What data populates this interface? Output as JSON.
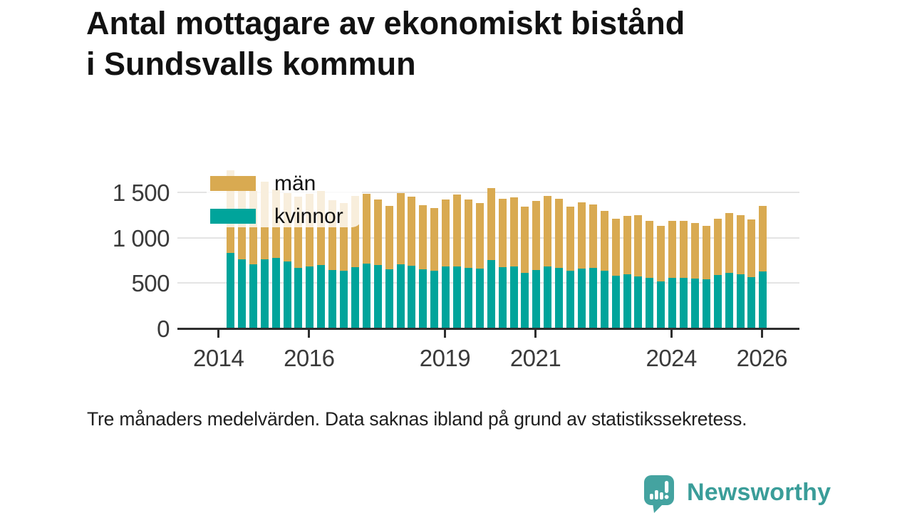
{
  "title": {
    "line1": "Antal mottagare av ekonomiskt bistånd",
    "line2": "i Sundsvalls kommun"
  },
  "footnote": "Tre månaders medelvärden. Data saknas ibland på grund av statistikssekretess.",
  "legend": {
    "items": [
      {
        "label": "män",
        "color": "#d9aa51"
      },
      {
        "label": "kvinnor",
        "color": "#00a49b"
      }
    ]
  },
  "brand": {
    "name": "Newsworthy",
    "color": "#3a9d99",
    "icon": "speech-bubble-bar-chart-icon",
    "icon_color": "#44a3a0"
  },
  "chart_data": {
    "type": "bar",
    "stacked": true,
    "title": "Antal mottagare av ekonomiskt bistånd i Sundsvalls kommun",
    "subtitle_note": "Tre månaders medelvärden. Data saknas ibland på grund av statistikssekretess.",
    "unit": "antal mottagare",
    "grid": true,
    "legend_position": "top-left-overlay",
    "ylim": [
      0,
      1800
    ],
    "x": [
      "2014 Q1",
      "2014 Q2",
      "2014 Q3",
      "2014 Q4",
      "2015 Q1",
      "2015 Q2",
      "2015 Q3",
      "2015 Q4",
      "2016 Q1",
      "2016 Q2",
      "2016 Q3",
      "2016 Q4",
      "2017 Q1",
      "2017 Q2",
      "2017 Q3",
      "2017 Q4",
      "2018 Q1",
      "2018 Q2",
      "2018 Q3",
      "2018 Q4",
      "2019 Q1",
      "2019 Q2",
      "2019 Q3",
      "2019 Q4",
      "2020 Q1",
      "2020 Q2",
      "2020 Q3",
      "2020 Q4",
      "2021 Q1",
      "2021 Q2",
      "2021 Q3",
      "2021 Q4",
      "2022 Q1",
      "2022 Q2",
      "2022 Q3",
      "2022 Q4",
      "2023 Q1",
      "2023 Q2",
      "2023 Q3",
      "2023 Q4",
      "2024 Q1",
      "2024 Q2",
      "2024 Q3",
      "2024 Q4",
      "2025 Q1",
      "2025 Q2",
      "2025 Q3",
      "2025 Q4"
    ],
    "series": [
      {
        "name": "kvinnor",
        "color": "#00a49b",
        "values": [
          825,
          755,
          700,
          755,
          770,
          730,
          665,
          675,
          690,
          640,
          630,
          670,
          710,
          690,
          645,
          700,
          685,
          645,
          630,
          675,
          675,
          665,
          655,
          745,
          670,
          675,
          610,
          640,
          675,
          665,
          630,
          655,
          660,
          630,
          575,
          590,
          570,
          555,
          515,
          550,
          550,
          545,
          535,
          585,
          610,
          590,
          560,
          620
        ]
      },
      {
        "name": "män",
        "color": "#d9aa51",
        "values": [
          915,
          780,
          815,
          860,
          760,
          760,
          785,
          805,
          820,
          770,
          745,
          785,
          770,
          725,
          700,
          785,
          765,
          710,
          690,
          740,
          795,
          755,
          720,
          800,
          755,
          770,
          725,
          765,
          785,
          760,
          710,
          730,
          705,
          665,
          630,
          650,
          675,
          630,
          610,
          635,
          630,
          610,
          590,
          620,
          660,
          655,
          640,
          725
        ]
      }
    ],
    "y_axis": {
      "ticks": [
        {
          "value": 0,
          "label": "0"
        },
        {
          "value": 500,
          "label": "500"
        },
        {
          "value": 1000,
          "label": "1 000"
        },
        {
          "value": 1500,
          "label": "1 500"
        }
      ]
    },
    "x_axis": {
      "ticks": [
        {
          "year": 2014,
          "label": "2014"
        },
        {
          "year": 2016,
          "label": "2016"
        },
        {
          "year": 2019,
          "label": "2019"
        },
        {
          "year": 2021,
          "label": "2021"
        },
        {
          "year": 2024,
          "label": "2024"
        },
        {
          "year": 2026,
          "label": "2026"
        }
      ]
    }
  }
}
